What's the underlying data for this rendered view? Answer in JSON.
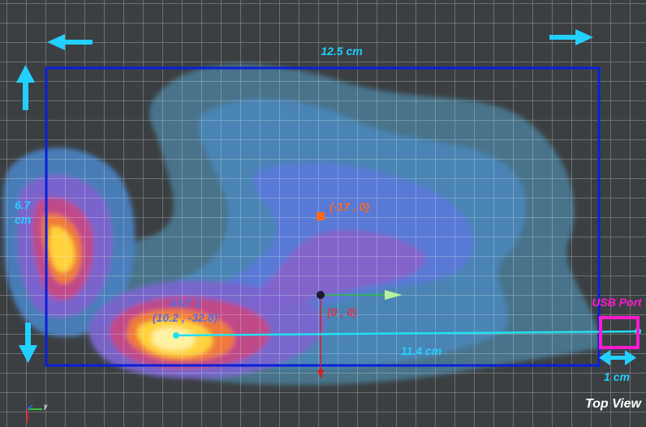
{
  "view_label": "Top View",
  "dimensions": {
    "width_label": "12.5 cm",
    "height_label": "6.7 cm",
    "height_label_line1": "6.7",
    "height_label_line2": "cm",
    "distance_label": "11.4 cm",
    "port_width_label": "1 cm"
  },
  "markers": {
    "origin": {
      "label": "(0 , 0)",
      "color": "#e0304a"
    },
    "offset_point": {
      "label": "(-17 , 0)",
      "color": "#ff6a1a"
    },
    "antenna": {
      "name": "ANT 1",
      "coords": "(10.2 , -32.8)",
      "color": "#5a6fe0"
    },
    "usb_port": {
      "label": "USB Port",
      "color": "#ff19d0"
    }
  },
  "axes_triad": {
    "x_label": "y"
  },
  "colors": {
    "board_outline": "#0a20d8",
    "dimension_cyan": "#22d0ff",
    "background": "#3a3d40"
  },
  "icons": [
    "arrow-left-icon",
    "arrow-right-icon",
    "arrow-up-icon",
    "arrow-down-icon",
    "double-arrow-icon"
  ]
}
